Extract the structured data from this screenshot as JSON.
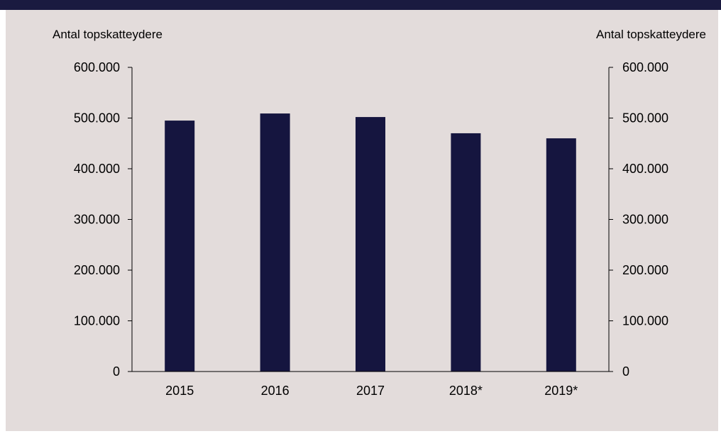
{
  "colors": {
    "bar": "#15153f",
    "panel": "#e3dcdb",
    "title_bar": "#1a1a40"
  },
  "chart_data": {
    "type": "bar",
    "categories": [
      "2015",
      "2016",
      "2017",
      "2018*",
      "2019*"
    ],
    "values": [
      495000,
      509000,
      502000,
      470000,
      460000
    ],
    "ylabel_left": "Antal topskatteydere",
    "ylabel_right": "Antal topskatteydere",
    "ylim": [
      0,
      600000
    ],
    "yticks": [
      "0",
      "100.000",
      "200.000",
      "300.000",
      "400.000",
      "500.000",
      "600.000"
    ],
    "grid": false,
    "legend": "none"
  }
}
